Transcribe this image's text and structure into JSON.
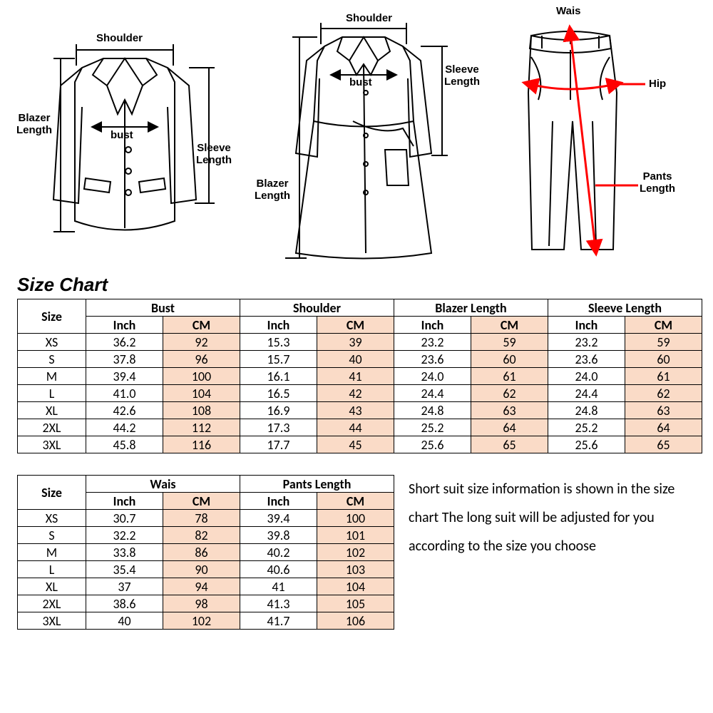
{
  "diagrams": {
    "blazer": {
      "shoulder": "Shoulder",
      "bust": "bust",
      "blazer_length": "Blazer\nLength",
      "sleeve_length": "Sleeve\nLength"
    },
    "coat": {
      "shoulder": "Shoulder",
      "bust": "bust",
      "blazer_length": "Blazer\nLength",
      "sleeve_length": "Sleeve\nLength"
    },
    "pants": {
      "waist": "Wais",
      "hip": "Hip",
      "pants_length": "Pants\nLength"
    }
  },
  "title": "Size Chart",
  "table1": {
    "size_header": "Size",
    "groups": [
      "Bust",
      "Shoulder",
      "Blazer  Length",
      "Sleeve Length"
    ],
    "units": [
      "Inch",
      "CM"
    ],
    "rows": [
      {
        "size": "XS",
        "bust_in": "36.2",
        "bust_cm": "92",
        "sh_in": "15.3",
        "sh_cm": "39",
        "bl_in": "23.2",
        "bl_cm": "59",
        "sl_in": "23.2",
        "sl_cm": "59"
      },
      {
        "size": "S",
        "bust_in": "37.8",
        "bust_cm": "96",
        "sh_in": "15.7",
        "sh_cm": "40",
        "bl_in": "23.6",
        "bl_cm": "60",
        "sl_in": "23.6",
        "sl_cm": "60"
      },
      {
        "size": "M",
        "bust_in": "39.4",
        "bust_cm": "100",
        "sh_in": "16.1",
        "sh_cm": "41",
        "bl_in": "24.0",
        "bl_cm": "61",
        "sl_in": "24.0",
        "sl_cm": "61"
      },
      {
        "size": "L",
        "bust_in": "41.0",
        "bust_cm": "104",
        "sh_in": "16.5",
        "sh_cm": "42",
        "bl_in": "24.4",
        "bl_cm": "62",
        "sl_in": "24.4",
        "sl_cm": "62"
      },
      {
        "size": "XL",
        "bust_in": "42.6",
        "bust_cm": "108",
        "sh_in": "16.9",
        "sh_cm": "43",
        "bl_in": "24.8",
        "bl_cm": "63",
        "sl_in": "24.8",
        "sl_cm": "63"
      },
      {
        "size": "2XL",
        "bust_in": "44.2",
        "bust_cm": "112",
        "sh_in": "17.3",
        "sh_cm": "44",
        "bl_in": "25.2",
        "bl_cm": "64",
        "sl_in": "25.2",
        "sl_cm": "64"
      },
      {
        "size": "3XL",
        "bust_in": "45.8",
        "bust_cm": "116",
        "sh_in": "17.7",
        "sh_cm": "45",
        "bl_in": "25.6",
        "bl_cm": "65",
        "sl_in": "25.6",
        "sl_cm": "65"
      }
    ]
  },
  "table2": {
    "size_header": "Size",
    "groups": [
      "Wais",
      "Pants  Length"
    ],
    "units": [
      "Inch",
      "CM"
    ],
    "rows": [
      {
        "size": "XS",
        "w_in": "30.7",
        "w_cm": "78",
        "p_in": "39.4",
        "p_cm": "100"
      },
      {
        "size": "S",
        "w_in": "32.2",
        "w_cm": "82",
        "p_in": "39.8",
        "p_cm": "101"
      },
      {
        "size": "M",
        "w_in": "33.8",
        "w_cm": "86",
        "p_in": "40.2",
        "p_cm": "102"
      },
      {
        "size": "L",
        "w_in": "35.4",
        "w_cm": "90",
        "p_in": "40.6",
        "p_cm": "103"
      },
      {
        "size": "XL",
        "w_in": "37",
        "w_cm": "94",
        "p_in": "41",
        "p_cm": "104"
      },
      {
        "size": "2XL",
        "w_in": "38.6",
        "w_cm": "98",
        "p_in": "41.3",
        "p_cm": "105"
      },
      {
        "size": "3XL",
        "w_in": "40",
        "w_cm": "102",
        "p_in": "41.7",
        "p_cm": "106"
      }
    ]
  },
  "note_text": "Short suit size information is shown in the size chart The long suit will be adjusted for you according to the size you choose",
  "colors": {
    "peach": "#fadbc7",
    "border": "#000000",
    "bg": "#ffffff",
    "arrow_red": "#ff0000"
  }
}
